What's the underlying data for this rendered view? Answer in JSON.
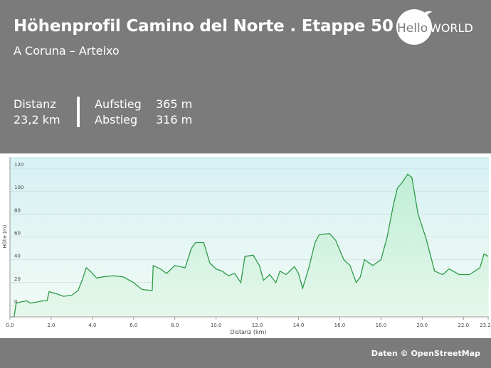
{
  "header": {
    "title": "Höhenprofil Camino del Norte . Etappe 50",
    "subtitle": "A Coruna – Arteixo"
  },
  "logo": {
    "text_hello": "Hello",
    "text_world": "WORLD",
    "icon": "bird-icon"
  },
  "stats": {
    "distance_label": "Distanz",
    "distance_value": "23,2 km",
    "ascent_label": "Aufstieg",
    "ascent_value": "365 m",
    "descent_label": "Abstieg",
    "descent_value": "316 m"
  },
  "footer": {
    "credit": "Daten © OpenStreetMap"
  },
  "colors": {
    "background": "#7b7b7b",
    "line": "#2f9a47",
    "fill_top": "#bfeed6",
    "plot_top": "#d6f1f4",
    "plot_bottom": "#f2fbf5"
  },
  "chart_data": {
    "type": "area",
    "title": "",
    "xlabel": "Distanz  (km)",
    "ylabel": "Höhe (m)",
    "xlim": [
      0,
      23.2
    ],
    "ylim": [
      -10,
      130
    ],
    "grid": true,
    "xticks": [
      0,
      2,
      4,
      6,
      8,
      10,
      12,
      14,
      16,
      18,
      20,
      22,
      23.2
    ],
    "xtick_labels": [
      "0.0",
      "2.0",
      "4.0",
      "6.0",
      "8.0",
      "10.0",
      "12.0",
      "14.0",
      "16.0",
      "18.0",
      "20.0",
      "22.0",
      "23.2"
    ],
    "yticks": [
      0,
      20,
      40,
      60,
      80,
      100,
      120
    ],
    "ytick_labels": [
      "0",
      "20",
      "40",
      "60",
      "80",
      "100",
      "120"
    ],
    "series": [
      {
        "points": [
          [
            0,
            -10
          ],
          [
            0.2,
            -10
          ],
          [
            0.3,
            2
          ],
          [
            0.5,
            3
          ],
          [
            0.8,
            4
          ],
          [
            1.0,
            2
          ],
          [
            1.3,
            3
          ],
          [
            1.6,
            4
          ],
          [
            1.8,
            4
          ],
          [
            1.9,
            12
          ],
          [
            2.3,
            10
          ],
          [
            2.6,
            8
          ],
          [
            3.0,
            9
          ],
          [
            3.3,
            13
          ],
          [
            3.5,
            22
          ],
          [
            3.7,
            33
          ],
          [
            3.9,
            30
          ],
          [
            4.2,
            24
          ],
          [
            4.5,
            25
          ],
          [
            5.0,
            26
          ],
          [
            5.5,
            25
          ],
          [
            6.0,
            20
          ],
          [
            6.4,
            14
          ],
          [
            6.9,
            13
          ],
          [
            6.95,
            35
          ],
          [
            7.3,
            32
          ],
          [
            7.6,
            28
          ],
          [
            8.0,
            35
          ],
          [
            8.5,
            33
          ],
          [
            8.8,
            50
          ],
          [
            9.0,
            55
          ],
          [
            9.4,
            55
          ],
          [
            9.7,
            37
          ],
          [
            10.0,
            32
          ],
          [
            10.3,
            30
          ],
          [
            10.6,
            26
          ],
          [
            10.9,
            28
          ],
          [
            11.2,
            20
          ],
          [
            11.4,
            43
          ],
          [
            11.8,
            44
          ],
          [
            12.1,
            35
          ],
          [
            12.3,
            22
          ],
          [
            12.6,
            27
          ],
          [
            12.9,
            20
          ],
          [
            13.1,
            30
          ],
          [
            13.4,
            27
          ],
          [
            13.8,
            34
          ],
          [
            14.0,
            28
          ],
          [
            14.2,
            15
          ],
          [
            14.5,
            33
          ],
          [
            14.8,
            55
          ],
          [
            15.0,
            62
          ],
          [
            15.5,
            63
          ],
          [
            15.8,
            57
          ],
          [
            16.2,
            40
          ],
          [
            16.5,
            35
          ],
          [
            16.8,
            20
          ],
          [
            17.0,
            25
          ],
          [
            17.2,
            40
          ],
          [
            17.6,
            35
          ],
          [
            18.0,
            40
          ],
          [
            18.3,
            60
          ],
          [
            18.6,
            88
          ],
          [
            18.8,
            103
          ],
          [
            19.0,
            107
          ],
          [
            19.3,
            115
          ],
          [
            19.5,
            112
          ],
          [
            19.8,
            80
          ],
          [
            20.2,
            58
          ],
          [
            20.6,
            30
          ],
          [
            21.0,
            27
          ],
          [
            21.3,
            32
          ],
          [
            21.8,
            27
          ],
          [
            22.3,
            27
          ],
          [
            22.8,
            33
          ],
          [
            23.0,
            45
          ],
          [
            23.2,
            43
          ]
        ]
      }
    ]
  }
}
